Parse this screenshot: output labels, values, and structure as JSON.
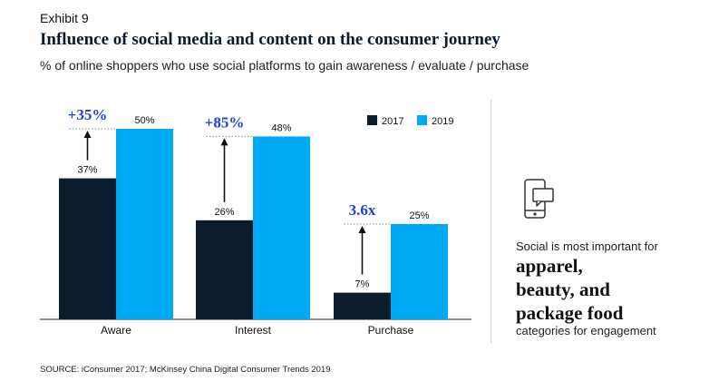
{
  "header": {
    "exhibit": "Exhibit 9",
    "title": "Influence of social media and content on the consumer journey",
    "subtitle": "% of online shoppers who use social platforms to gain awareness / evaluate / purchase"
  },
  "chart_data": {
    "type": "bar",
    "categories": [
      "Aware",
      "Interest",
      "Purchase"
    ],
    "series": [
      {
        "name": "2017",
        "values": [
          37,
          26,
          7
        ],
        "labels": [
          "37%",
          "26%",
          "7%"
        ],
        "color": "#0b1c2c"
      },
      {
        "name": "2019",
        "values": [
          50,
          48,
          25
        ],
        "labels": [
          "50%",
          "48%",
          "25%"
        ],
        "color": "#00a9f4"
      }
    ],
    "annotations": [
      "+35%",
      "+85%",
      "3.6x"
    ],
    "annotation_color": "#1f40e6",
    "ylim": [
      0,
      55
    ],
    "grid": false,
    "legend_position": "top-right"
  },
  "side_panel": {
    "icon": "phone-chat-icon",
    "lead": "Social is most important for",
    "highlights": [
      "apparel,",
      "beauty, and",
      "package food"
    ],
    "tail": "categories for engagement"
  },
  "source": "SOURCE: iConsumer 2017; McKinsey China Digital Consumer Trends 2019"
}
